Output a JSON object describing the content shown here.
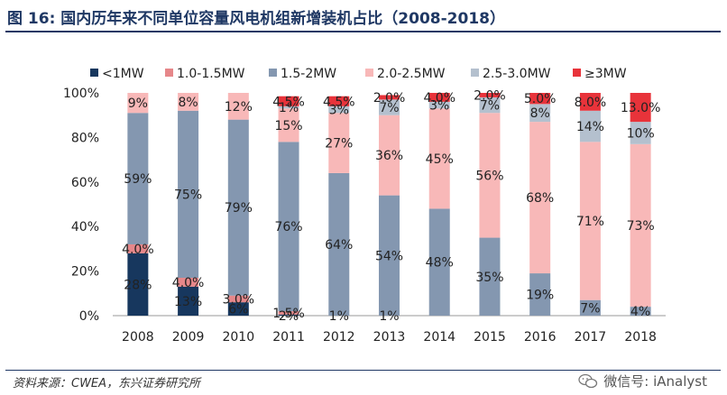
{
  "header": {
    "title": "图 16: 国内历年来不同单位容量风电机组新增装机占比（2008-2018）"
  },
  "footer": {
    "source": "资料来源：CWEA，东兴证券研究所",
    "watermark": "微信号: iAnalyst"
  },
  "chart_data": {
    "type": "bar",
    "stacked": true,
    "title": "国内历年来不同单位容量风电机组新增装机占比（2008-2018）",
    "ylim": [
      0,
      100
    ],
    "yticks": [
      "0%",
      "20%",
      "40%",
      "60%",
      "80%",
      "100%"
    ],
    "categories": [
      "2008",
      "2009",
      "2010",
      "2011",
      "2012",
      "2013",
      "2014",
      "2015",
      "2016",
      "2017",
      "2018"
    ],
    "legend_position": "top",
    "series": [
      {
        "name": "<1MW",
        "color": "#17375e",
        "values": [
          28,
          13,
          6,
          0.5,
          0,
          0,
          0,
          0,
          0,
          0,
          0
        ],
        "labels": [
          "28%",
          "13%",
          "6%",
          "",
          "",
          "",
          "",
          "",
          "",
          "",
          ""
        ]
      },
      {
        "name": "1.0-1.5MW",
        "color": "#e6878a",
        "values": [
          4,
          4,
          3,
          1.5,
          0,
          0,
          0,
          0,
          0,
          0,
          0
        ],
        "labels": [
          "4.0%",
          "4.0%",
          "3.0%",
          "1.5%",
          "",
          "",
          "",
          "",
          "",
          "",
          ""
        ]
      },
      {
        "name": "1.5-2MW",
        "color": "#8497b0",
        "values": [
          59,
          75,
          79,
          76,
          64,
          54,
          48,
          35,
          19,
          7,
          4
        ],
        "labels": [
          "59%",
          "75%",
          "79%",
          "76%",
          "64%",
          "54%",
          "48%",
          "35%",
          "19%",
          "7%",
          "4%"
        ]
      },
      {
        "name": "2.0-2.5MW",
        "color": "#f8b8b8",
        "values": [
          9,
          8,
          12,
          15,
          27,
          36,
          45,
          56,
          68,
          71,
          73
        ],
        "labels": [
          "9%",
          "8%",
          "12%",
          "15%",
          "27%",
          "36%",
          "45%",
          "56%",
          "68%",
          "71%",
          "73%"
        ]
      },
      {
        "name": "2.5-3.0MW",
        "color": "#b4c0ce",
        "values": [
          0,
          0,
          0,
          1,
          3,
          7,
          3,
          7,
          8,
          14,
          10
        ],
        "labels": [
          "",
          "",
          "",
          "1%",
          "3%",
          "7%",
          "3%",
          "7%",
          "8%",
          "14%",
          "10%"
        ]
      },
      {
        "name": "≥3MW",
        "color": "#e8333a",
        "values": [
          0,
          0,
          0,
          4.5,
          4.5,
          2,
          4,
          2,
          5,
          8,
          13
        ],
        "labels": [
          "",
          "",
          "",
          "4.5%",
          "4.5%",
          "2.0%",
          "4.0%",
          "2.0%",
          "5.0%",
          "8.0%",
          "13.0%"
        ]
      }
    ],
    "extra_labels": [
      {
        "category": "2011",
        "text": "2%"
      },
      {
        "category": "2012",
        "text": "1%"
      },
      {
        "category": "2013",
        "text": "1%"
      }
    ]
  }
}
